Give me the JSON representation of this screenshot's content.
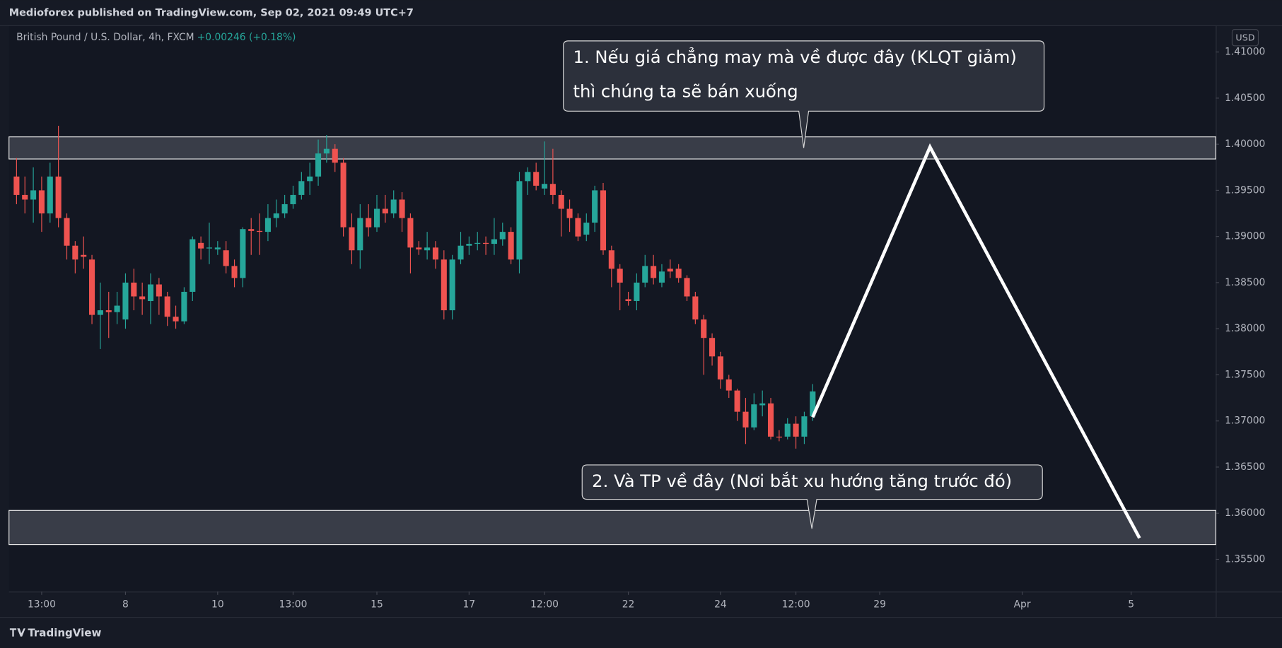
{
  "header": {
    "publisher": "Medioforex published on TradingView.com, Sep 02, 2021 09:49 UTC+7",
    "logo": "TradingView"
  },
  "chart_data": {
    "type": "candlestick",
    "symbol": "British Pound / U.S. Dollar, 4h, FXCM",
    "change": "+0.00246 (+0.18%)",
    "currency": "USD",
    "up_color": "#26a69a",
    "down_color": "#ef5350",
    "grid": false,
    "open": [
      1.3965,
      1.3945,
      1.394,
      1.395,
      1.3925,
      1.3965,
      1.392,
      1.389,
      1.388,
      1.3875,
      1.3815,
      1.382,
      1.3818,
      1.381,
      1.385,
      1.3835,
      1.383,
      1.3848,
      1.3835,
      1.3813,
      1.3808,
      1.384,
      1.3893,
      1.3887,
      1.3886,
      1.3885,
      1.3868,
      1.3855,
      1.3908,
      1.3906,
      1.3905,
      1.392,
      1.3925,
      1.3935,
      1.3945,
      1.396,
      1.3965,
      1.399,
      1.3995,
      1.398,
      1.391,
      1.3885,
      1.392,
      1.391,
      1.393,
      1.3925,
      1.394,
      1.392,
      1.3888,
      1.3885,
      1.3888,
      1.3875,
      1.382,
      1.3875,
      1.389,
      1.3892,
      1.3893,
      1.3892,
      1.3897,
      1.3905,
      1.3875,
      1.396,
      1.397,
      1.3952,
      1.3957,
      1.3945,
      1.393,
      1.392,
      1.3902,
      1.3915,
      1.395,
      1.3885,
      1.3865,
      1.3832,
      1.383,
      1.385,
      1.3868,
      1.385,
      1.3865,
      1.3865,
      1.3855,
      1.3835,
      1.381,
      1.379,
      1.377,
      1.3745,
      1.3733,
      1.371,
      1.3693,
      1.3717,
      1.3719,
      1.3683,
      1.3683,
      1.3697,
      1.3683,
      1.3705
    ],
    "high": [
      1.3985,
      1.3965,
      1.3975,
      1.3965,
      1.398,
      1.402,
      1.3925,
      1.3895,
      1.39,
      1.388,
      1.385,
      1.384,
      1.384,
      1.386,
      1.3865,
      1.385,
      1.386,
      1.3855,
      1.384,
      1.3825,
      1.3845,
      1.39,
      1.39,
      1.3915,
      1.3895,
      1.3895,
      1.3875,
      1.391,
      1.392,
      1.3925,
      1.3935,
      1.394,
      1.3945,
      1.3955,
      1.397,
      1.398,
      1.4005,
      1.401,
      1.4,
      1.3985,
      1.3925,
      1.3935,
      1.3935,
      1.3945,
      1.3945,
      1.395,
      1.3948,
      1.3925,
      1.3895,
      1.3905,
      1.3895,
      1.3885,
      1.388,
      1.3905,
      1.39,
      1.3905,
      1.39,
      1.392,
      1.3915,
      1.391,
      1.397,
      1.3975,
      1.398,
      1.4003,
      1.3995,
      1.395,
      1.394,
      1.3925,
      1.3925,
      1.3955,
      1.3958,
      1.389,
      1.387,
      1.384,
      1.386,
      1.388,
      1.388,
      1.387,
      1.3875,
      1.387,
      1.3858,
      1.384,
      1.3815,
      1.3795,
      1.3775,
      1.375,
      1.3735,
      1.3725,
      1.373,
      1.3733,
      1.3725,
      1.369,
      1.3703,
      1.3705,
      1.371,
      1.374
    ],
    "low": [
      1.3935,
      1.3925,
      1.3915,
      1.3905,
      1.3915,
      1.391,
      1.3875,
      1.386,
      1.3865,
      1.3805,
      1.3778,
      1.379,
      1.3805,
      1.38,
      1.382,
      1.3815,
      1.3805,
      1.3815,
      1.3803,
      1.38,
      1.3805,
      1.383,
      1.3875,
      1.387,
      1.388,
      1.386,
      1.3845,
      1.3845,
      1.388,
      1.388,
      1.3895,
      1.391,
      1.392,
      1.393,
      1.394,
      1.3945,
      1.3955,
      1.398,
      1.397,
      1.39,
      1.387,
      1.3865,
      1.39,
      1.3905,
      1.3915,
      1.392,
      1.3905,
      1.386,
      1.388,
      1.3875,
      1.3865,
      1.381,
      1.381,
      1.387,
      1.388,
      1.3885,
      1.388,
      1.388,
      1.389,
      1.387,
      1.386,
      1.3945,
      1.395,
      1.3945,
      1.3935,
      1.39,
      1.3905,
      1.3895,
      1.3895,
      1.3905,
      1.388,
      1.3845,
      1.382,
      1.3825,
      1.382,
      1.3845,
      1.3848,
      1.3845,
      1.3855,
      1.385,
      1.383,
      1.3805,
      1.375,
      1.376,
      1.3735,
      1.3725,
      1.37,
      1.3675,
      1.369,
      1.3705,
      1.368,
      1.3678,
      1.368,
      1.367,
      1.3675,
      1.37
    ],
    "close": [
      1.3945,
      1.394,
      1.395,
      1.3925,
      1.3965,
      1.392,
      1.389,
      1.3875,
      1.3878,
      1.3815,
      1.382,
      1.3818,
      1.3825,
      1.385,
      1.3835,
      1.3832,
      1.3848,
      1.3835,
      1.3813,
      1.3808,
      1.384,
      1.3897,
      1.3887,
      1.3888,
      1.3888,
      1.3868,
      1.3855,
      1.3908,
      1.3906,
      1.3905,
      1.392,
      1.3925,
      1.3935,
      1.3945,
      1.396,
      1.3965,
      1.399,
      1.3995,
      1.398,
      1.391,
      1.3885,
      1.392,
      1.391,
      1.393,
      1.3925,
      1.394,
      1.392,
      1.3888,
      1.3886,
      1.3888,
      1.3875,
      1.382,
      1.3875,
      1.389,
      1.3892,
      1.3893,
      1.3892,
      1.3897,
      1.3905,
      1.3875,
      1.396,
      1.397,
      1.3955,
      1.3957,
      1.3945,
      1.393,
      1.392,
      1.39,
      1.3915,
      1.395,
      1.3885,
      1.3865,
      1.385,
      1.383,
      1.385,
      1.3868,
      1.3855,
      1.3862,
      1.3862,
      1.3855,
      1.3835,
      1.381,
      1.379,
      1.377,
      1.3745,
      1.3733,
      1.371,
      1.3693,
      1.3718,
      1.3719,
      1.3683,
      1.3682,
      1.3697,
      1.3683,
      1.3705,
      1.3732
    ],
    "xlim": [
      -0.9,
      143.1
    ],
    "xticks": [
      {
        "value": 3,
        "label": "13:00"
      },
      {
        "value": 13,
        "label": "8"
      },
      {
        "value": 24,
        "label": "10"
      },
      {
        "value": 33,
        "label": "13:00"
      },
      {
        "value": 43,
        "label": "15"
      },
      {
        "value": 54,
        "label": "17"
      },
      {
        "value": 63,
        "label": "12:00"
      },
      {
        "value": 73,
        "label": "22"
      },
      {
        "value": 84,
        "label": "24"
      },
      {
        "value": 93,
        "label": "12:00"
      },
      {
        "value": 103,
        "label": "29"
      },
      {
        "value": 120,
        "label": "Apr"
      },
      {
        "value": 133,
        "label": "5"
      }
    ],
    "ylim": [
      1.3515,
      1.4128
    ],
    "yticks": [
      {
        "value": 1.41,
        "label": "1.41000"
      },
      {
        "value": 1.405,
        "label": "1.40500"
      },
      {
        "value": 1.4,
        "label": "1.40000"
      },
      {
        "value": 1.395,
        "label": "1.39500"
      },
      {
        "value": 1.39,
        "label": "1.39000"
      },
      {
        "value": 1.385,
        "label": "1.38500"
      },
      {
        "value": 1.38,
        "label": "1.38000"
      },
      {
        "value": 1.375,
        "label": "1.37500"
      },
      {
        "value": 1.37,
        "label": "1.37000"
      },
      {
        "value": 1.365,
        "label": "1.36500"
      },
      {
        "value": 1.36,
        "label": "1.36000"
      },
      {
        "value": 1.355,
        "label": "1.35500"
      }
    ],
    "zones": [
      [
        1.3984,
        1.4008
      ],
      [
        1.3566,
        1.3603
      ]
    ],
    "projection": {
      "x": [
        95,
        109,
        134
      ],
      "y": [
        1.3704,
        1.3997,
        1.3573
      ]
    },
    "annotations": [
      {
        "lines": [
          "1. Nếu giá chẳng may mà về được đây (KLQT giảm)",
          "thì chúng ta sẽ bán xuống"
        ]
      },
      {
        "lines": [
          "2. Và TP về đây (Nơi bắt xu hướng tăng trước đó)"
        ]
      }
    ]
  }
}
